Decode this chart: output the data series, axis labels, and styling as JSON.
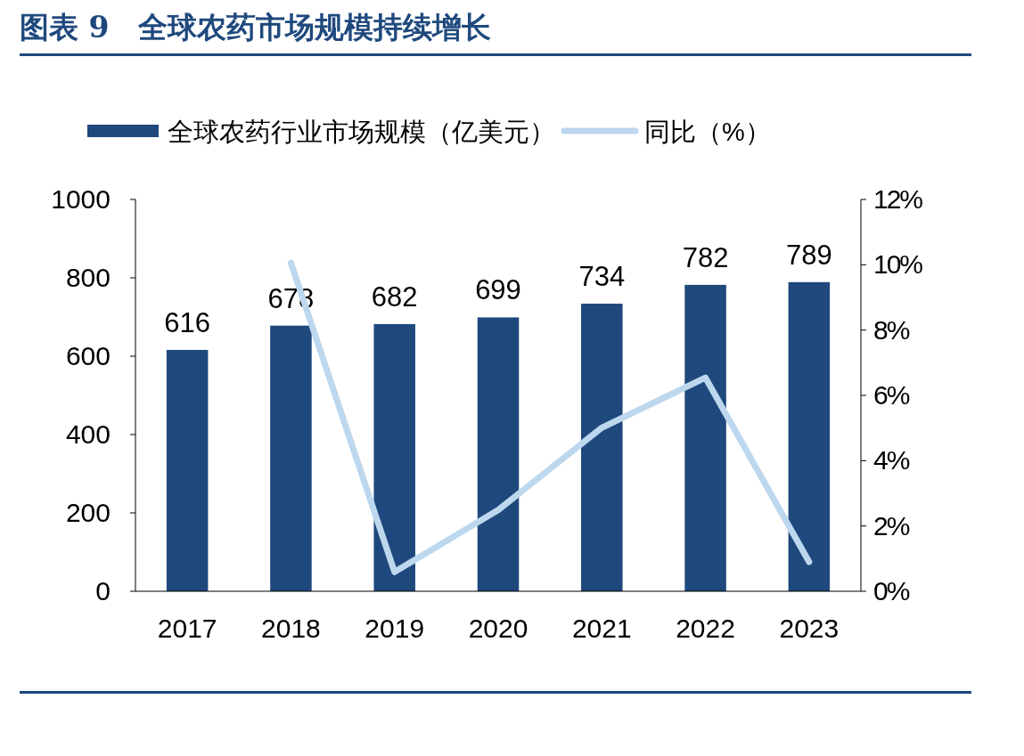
{
  "chart_data": {
    "type": "bar",
    "title": "图表 9　全球农药市场规模持续增长",
    "categories": [
      "2017",
      "2018",
      "2019",
      "2020",
      "2021",
      "2022",
      "2023"
    ],
    "series": [
      {
        "name": "全球农药行业市场规模（亿美元）",
        "color": "#1f497d",
        "values": [
          616,
          678,
          682,
          699,
          734,
          782,
          789
        ],
        "value_labels": [
          "616",
          "678",
          "682",
          "699",
          "734",
          "782",
          "789"
        ]
      },
      {
        "name": "同比（%）",
        "type": "line",
        "axis": "y2",
        "color": "#bdd7ee",
        "values": [
          null,
          10.06,
          0.59,
          2.49,
          5.01,
          6.54,
          0.9
        ]
      }
    ],
    "ylim": [
      0,
      1000
    ],
    "yticks": [
      0,
      200,
      400,
      600,
      800,
      1000
    ],
    "y2lim": [
      0,
      12
    ],
    "y2ticks": [
      {
        "value": 0,
        "label": "0%"
      },
      {
        "value": 2,
        "label": "2%"
      },
      {
        "value": 4,
        "label": "4%"
      },
      {
        "value": 6,
        "label": "6%"
      },
      {
        "value": 8,
        "label": "8%"
      },
      {
        "value": 10,
        "label": "10%"
      },
      {
        "value": 12,
        "label": "12%"
      }
    ],
    "legend": "top",
    "marker": "none",
    "line_style": "solid"
  }
}
